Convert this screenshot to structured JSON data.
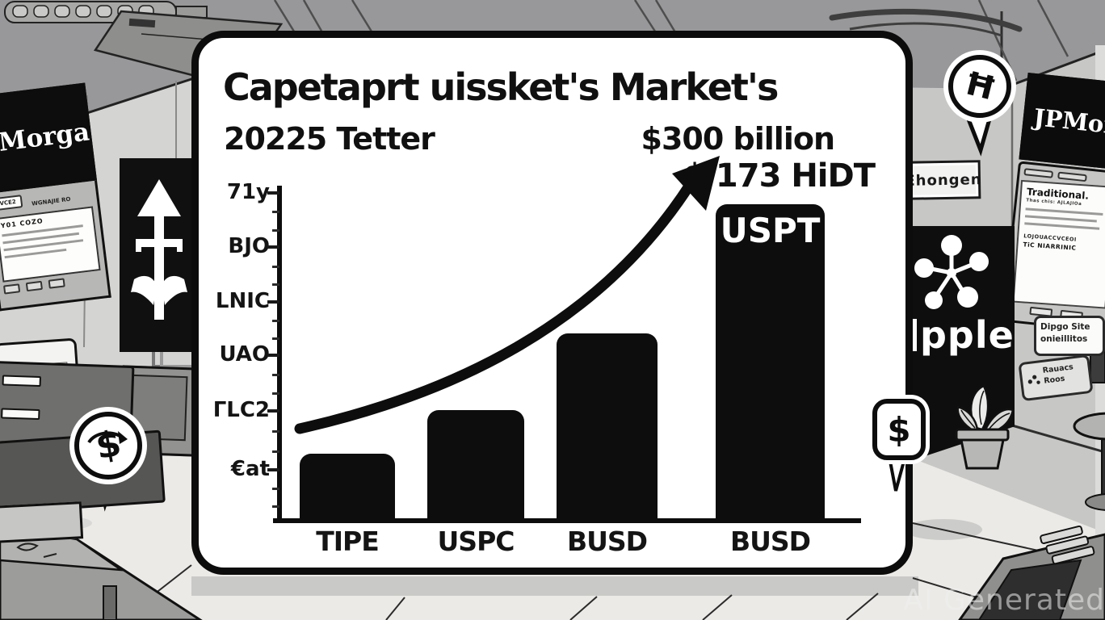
{
  "card": {
    "title": "Capetaprt uissket's Market's",
    "subtitle_left": "20225 Tetter",
    "subtitle_right": "$300 billion",
    "annotation": "$ 173 HiDT",
    "bar_overlay_label": "USPT"
  },
  "chart_data": {
    "type": "bar",
    "title": "Capetaprt uissket's Market's",
    "subtitle": "20225 Tetter",
    "categories": [
      "TIPE",
      "USPC",
      "BUSD",
      "BUSD"
    ],
    "values": [
      20,
      33,
      56,
      95
    ],
    "ylim": [
      0,
      100
    ],
    "y_tick_labels": [
      "71y",
      "BJO",
      "LNIC",
      "UAO",
      "ΓLC2",
      "€at"
    ],
    "annotations": [
      "$300 billion",
      "$ 173 HiDT",
      "USPT"
    ],
    "legend": "none",
    "grid": false,
    "trend_arrow": "exponential-up"
  },
  "background": {
    "left_screen_brand": "JPMorgan",
    "left_panel_button": "VCE2",
    "left_panel_caption": "WGNAJIE RO",
    "left_doc_title": "Y01 COZO",
    "right_screen_brand": "JPMorgan",
    "right_doc_title": "Traditional.",
    "right_doc_subtitle": "Thas chis: AJLAJIOa",
    "right_doc_line1": "LOJOUACCVCEOI",
    "right_doc_line2": "TiC NIARRINIC",
    "door_sign": "Éhongen",
    "ripple_label": "pple",
    "sign_top_line1": "Dipgo Site",
    "sign_top_line2": "onieillitos",
    "sign_bottom_line1": "Rauacs",
    "sign_bottom_line2": "Roos",
    "bubble_dollar": "$",
    "bubble_h": "Ħ",
    "watermark": "AI Generated"
  }
}
